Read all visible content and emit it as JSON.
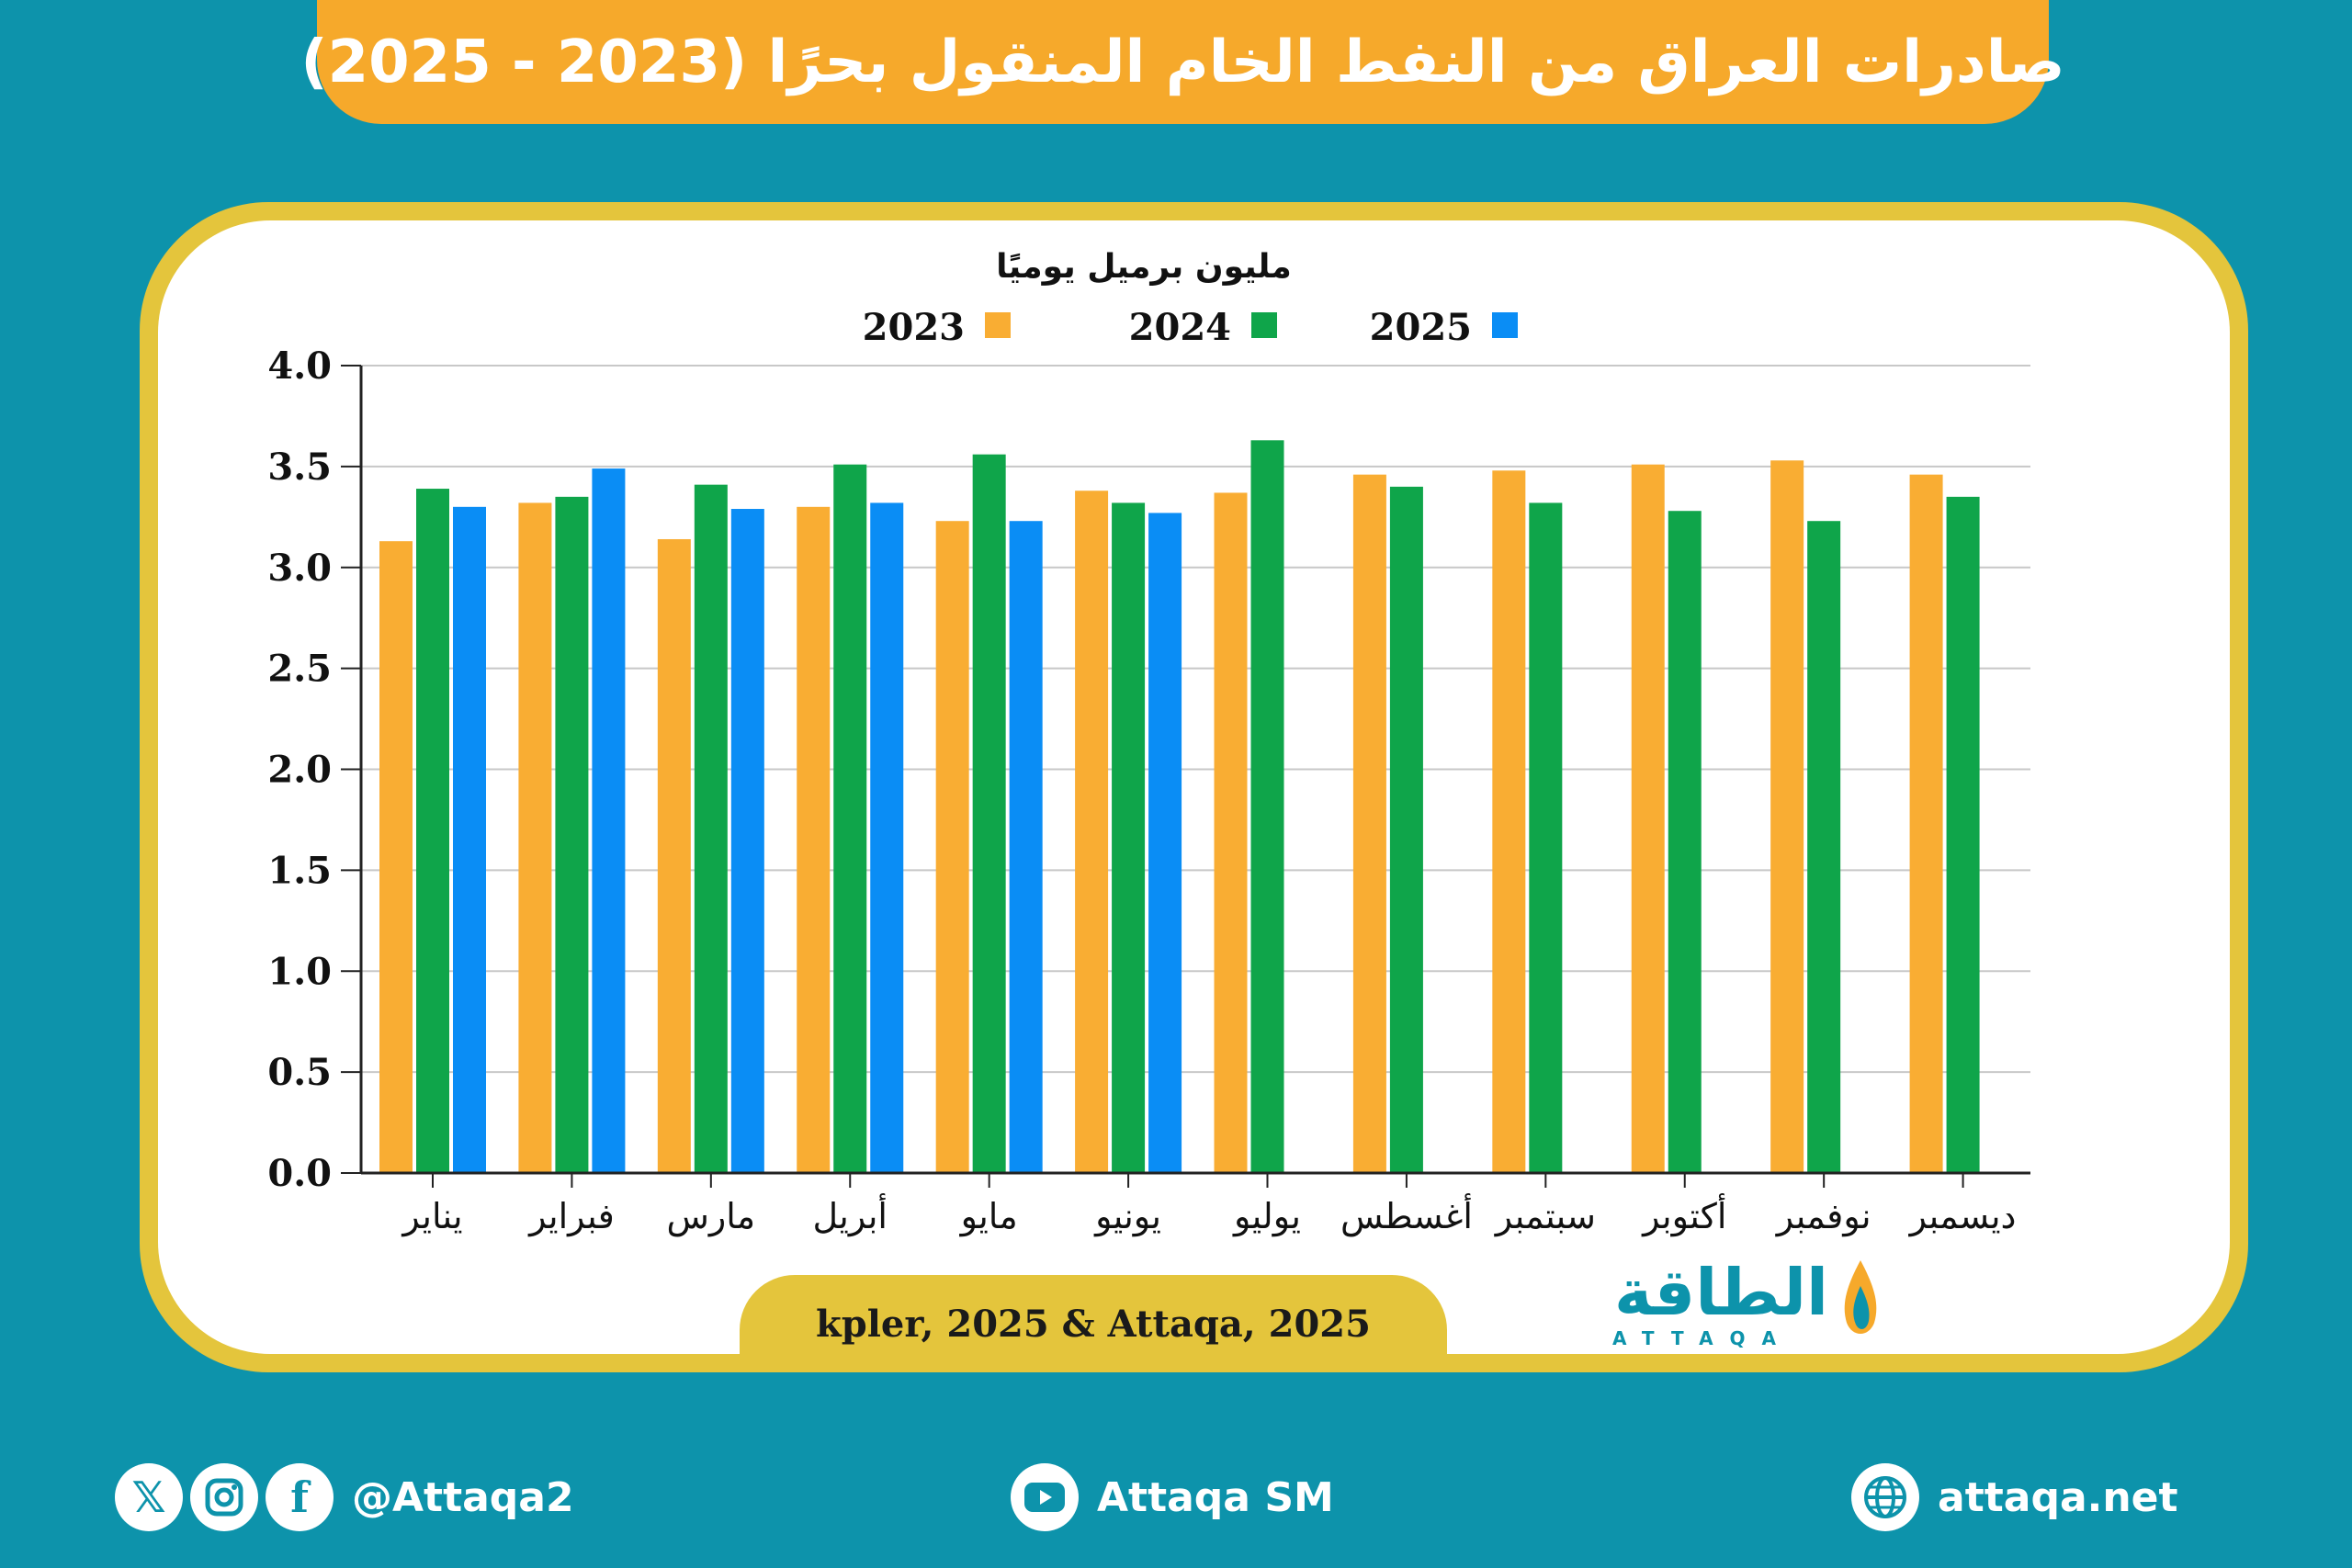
{
  "header": {
    "title": "صادرات العراق من النفط الخام المنقول بحرًا (2023 - 2025)"
  },
  "chart_data": {
    "type": "bar",
    "title": "صادرات العراق من النفط الخام المنقول بحرًا (2023 - 2025)",
    "ylabel": "مليون برميل يوميًا",
    "xlabel": "",
    "ylim": [
      0,
      4.0
    ],
    "yticks": [
      "0.0",
      "0.5",
      "1.0",
      "1.5",
      "2.0",
      "2.5",
      "3.0",
      "3.5",
      "4.0"
    ],
    "grid": true,
    "legend_position": "top",
    "categories": [
      "يناير",
      "فبراير",
      "مارس",
      "أبريل",
      "مايو",
      "يونيو",
      "يوليو",
      "أغسطس",
      "سبتمبر",
      "أكتوبر",
      "نوفمبر",
      "ديسمبر"
    ],
    "series": [
      {
        "name": "2023",
        "color": "#f9ad33",
        "values": [
          3.13,
          3.32,
          3.14,
          3.3,
          3.23,
          3.38,
          3.37,
          3.46,
          3.48,
          3.51,
          3.53,
          3.46
        ]
      },
      {
        "name": "2024",
        "color": "#0fa54a",
        "values": [
          3.39,
          3.35,
          3.41,
          3.51,
          3.56,
          3.32,
          3.63,
          3.4,
          3.32,
          3.28,
          3.23,
          3.35
        ]
      },
      {
        "name": "2025",
        "color": "#0a8df5",
        "values": [
          3.3,
          3.49,
          3.29,
          3.32,
          3.23,
          3.27,
          null,
          null,
          null,
          null,
          null,
          null
        ]
      }
    ]
  },
  "source": {
    "text": "kpler, 2025 & Attaqa, 2025"
  },
  "logo": {
    "arabic": "الطاقة",
    "latin": "ATTAQA"
  },
  "footer": {
    "social_handle": "@Attaqa2",
    "youtube": "Attaqa SM",
    "website": "attaqa.net"
  },
  "colors": {
    "background": "#0d93ab",
    "banner": "#f6a92b",
    "card_border": "#e4c53c"
  }
}
